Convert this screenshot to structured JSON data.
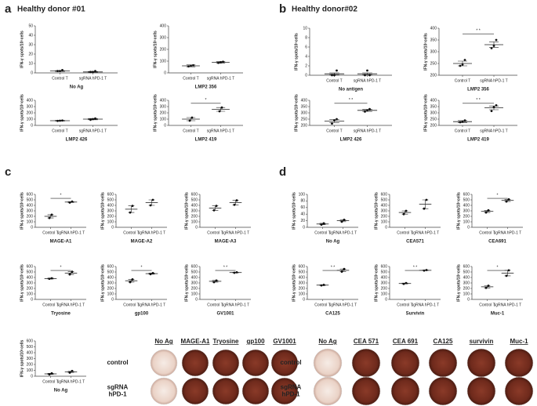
{
  "panels": [
    {
      "letter": "a",
      "title": "Healthy donor #01"
    },
    {
      "letter": "b",
      "title": "Healthy donor#02"
    },
    {
      "letter": "c"
    },
    {
      "letter": "d"
    }
  ],
  "photos": [
    {
      "columns": [
        "No Ag",
        "MAGE-A1",
        "Tryosine",
        "gp100",
        "GV1001"
      ],
      "rows": [
        [
          "control"
        ],
        [
          "sgRNA",
          "hPD-1"
        ]
      ]
    },
    {
      "columns": [
        "No Ag",
        "CEA 571",
        "CEA 691",
        "CA125",
        "survivin",
        "Muc-1"
      ],
      "rows": [
        [
          "control"
        ],
        [
          "sgRNA",
          "hPD-1"
        ]
      ]
    }
  ],
  "chart_data": [
    {
      "type": "dot",
      "title": "No Ag",
      "ylabel": "IFN-γ spots/10⁵cells",
      "categories": [
        "Control T",
        "sgRNA hPD-1 T"
      ],
      "ylim": [
        0,
        50
      ],
      "yticks": [
        0,
        10,
        20,
        30,
        40,
        50
      ],
      "values": [
        2,
        1
      ],
      "errors": [
        0.5,
        0.5
      ],
      "points": [
        [
          2,
          2,
          3
        ],
        [
          1,
          1,
          2
        ]
      ]
    },
    {
      "type": "dot",
      "title": "LMP2 356",
      "ylabel": "IFN-γ spots/10⁵cells",
      "categories": [
        "Control T",
        "sgRNA hPD-1 T"
      ],
      "ylim": [
        0,
        400
      ],
      "yticks": [
        0,
        100,
        200,
        300,
        400
      ],
      "values": [
        60,
        90
      ],
      "errors": [
        8,
        8
      ],
      "points": [
        [
          55,
          60,
          65
        ],
        [
          85,
          90,
          95
        ]
      ]
    },
    {
      "type": "dot",
      "title": "LMP2 426",
      "ylabel": "IFN-γ spots/10⁵cells",
      "categories": [
        "Control T",
        "sgRNA hPD-1 T"
      ],
      "ylim": [
        0,
        400
      ],
      "yticks": [
        0,
        100,
        200,
        300,
        400
      ],
      "values": [
        75,
        100
      ],
      "errors": [
        5,
        10
      ],
      "points": [
        [
          72,
          75,
          78
        ],
        [
          90,
          100,
          110
        ]
      ]
    },
    {
      "type": "dot",
      "title": "LMP2 419",
      "ylabel": "IFN-γ spots/10⁵cells",
      "categories": [
        "Control T",
        "sgRNA hPD-1 T"
      ],
      "ylim": [
        0,
        400
      ],
      "yticks": [
        0,
        100,
        200,
        300,
        400
      ],
      "values": [
        100,
        255
      ],
      "errors": [
        25,
        30
      ],
      "points": [
        [
          75,
          125
        ],
        [
          225,
          285
        ]
      ],
      "significance": "*"
    },
    {
      "type": "dot",
      "title": "No antigen",
      "ylabel": "IFN-γ spots/10⁵cells",
      "categories": [
        "Control T",
        "sgRNA hPD-1 T"
      ],
      "ylim": [
        0,
        10
      ],
      "yticks": [
        0,
        2,
        4,
        6,
        8,
        10
      ],
      "values": [
        0.3,
        0.3
      ],
      "errors": [
        0.2,
        0.2
      ],
      "points": [
        [
          0,
          0,
          1
        ],
        [
          0,
          1,
          0
        ]
      ]
    },
    {
      "type": "dot",
      "title": "LMP2 356",
      "ylabel": "IFN-γ spots/10⁵cells",
      "categories": [
        "Control T",
        "sgRNA hPD-1 T"
      ],
      "ylim": [
        200,
        400
      ],
      "yticks": [
        200,
        250,
        300,
        350,
        400
      ],
      "values": [
        250,
        330
      ],
      "errors": [
        10,
        12
      ],
      "points": [
        [
          240,
          245,
          265
        ],
        [
          315,
          325,
          350
        ]
      ],
      "significance": "* *"
    },
    {
      "type": "dot",
      "title": "LMP2 426",
      "ylabel": "IFN-γ spots/10⁵cells",
      "categories": [
        "Control T",
        "sgRNA hPD-1 T"
      ],
      "ylim": [
        200,
        400
      ],
      "yticks": [
        200,
        250,
        300,
        350,
        400
      ],
      "values": [
        235,
        320
      ],
      "errors": [
        12,
        8
      ],
      "points": [
        [
          215,
          240,
          250
        ],
        [
          310,
          320,
          330
        ]
      ],
      "significance": "* *"
    },
    {
      "type": "dot",
      "title": "LMP2 419",
      "ylabel": "IFN-γ spots/10⁵cells",
      "categories": [
        "Control T",
        "sgRNA hPD-1 T"
      ],
      "ylim": [
        200,
        400
      ],
      "yticks": [
        200,
        250,
        300,
        350,
        400
      ],
      "values": [
        230,
        340
      ],
      "errors": [
        8,
        15
      ],
      "points": [
        [
          225,
          230,
          240
        ],
        [
          315,
          345,
          360
        ]
      ],
      "significance": "* *"
    },
    {
      "type": "dot",
      "title": "MAGE-A1",
      "ylabel": "IFN-γ spots/10⁵cells",
      "categories": [
        "Control T",
        "sgRNA hPD-1 T"
      ],
      "ylim": [
        0,
        600
      ],
      "yticks": [
        0,
        100,
        200,
        300,
        400,
        500,
        600
      ],
      "values": [
        200,
        460
      ],
      "errors": [
        30,
        8
      ],
      "points": [
        [
          170,
          230
        ],
        [
          450,
          470
        ]
      ],
      "significance": "*"
    },
    {
      "type": "dot",
      "title": "MAGE-A2",
      "ylabel": "IFN-γ spots/10⁵cells",
      "categories": [
        "Control T",
        "sgRNA hPD-1 T"
      ],
      "ylim": [
        0,
        600
      ],
      "yticks": [
        0,
        100,
        200,
        300,
        400,
        500,
        600
      ],
      "values": [
        330,
        450
      ],
      "errors": [
        60,
        50
      ],
      "points": [
        [
          270,
          390
        ],
        [
          400,
          500
        ]
      ]
    },
    {
      "type": "dot",
      "title": "MAGE-A3",
      "ylabel": "IFN-γ spots/10⁵cells",
      "categories": [
        "Control T",
        "sgRNA hPD-1 T"
      ],
      "ylim": [
        0,
        600
      ],
      "yticks": [
        0,
        100,
        200,
        300,
        400,
        500,
        600
      ],
      "values": [
        350,
        450
      ],
      "errors": [
        40,
        40
      ],
      "points": [
        [
          310,
          390
        ],
        [
          410,
          490
        ]
      ]
    },
    {
      "type": "dot",
      "title": "Tryosine",
      "ylabel": "IFN-γ spots/10⁵cells",
      "categories": [
        "Control T",
        "sgRNA hPD-1 T"
      ],
      "ylim": [
        0,
        600
      ],
      "yticks": [
        0,
        100,
        200,
        300,
        400,
        500,
        600
      ],
      "values": [
        380,
        480
      ],
      "errors": [
        8,
        25
      ],
      "points": [
        [
          375,
          385
        ],
        [
          455,
          505
        ]
      ],
      "significance": "*"
    },
    {
      "type": "dot",
      "title": "gp100",
      "ylabel": "IFN-γ spots/10⁵cells",
      "categories": [
        "Control T",
        "sgRNA hPD-1 T"
      ],
      "ylim": [
        0,
        600
      ],
      "yticks": [
        0,
        100,
        200,
        300,
        400,
        500,
        600
      ],
      "values": [
        340,
        470
      ],
      "errors": [
        25,
        10
      ],
      "points": [
        [
          315,
          365
        ],
        [
          460,
          480
        ]
      ],
      "significance": "*"
    },
    {
      "type": "dot",
      "title": "GV1001",
      "ylabel": "IFN-γ spots/10⁵cells",
      "categories": [
        "Control T",
        "sgRNA hPD-1 T"
      ],
      "ylim": [
        0,
        600
      ],
      "yticks": [
        0,
        100,
        200,
        300,
        400,
        500,
        600
      ],
      "values": [
        330,
        490
      ],
      "errors": [
        15,
        5
      ],
      "points": [
        [
          315,
          345
        ],
        [
          485,
          495
        ]
      ],
      "significance": "* *"
    },
    {
      "type": "dot",
      "title": "No Ag",
      "ylabel": "IFN-γ spots/10⁵cells",
      "categories": [
        "Control T",
        "sgRNA hPD-1 T"
      ],
      "ylim": [
        0,
        600
      ],
      "yticks": [
        0,
        100,
        200,
        300,
        400,
        500,
        600
      ],
      "values": [
        40,
        75
      ],
      "errors": [
        10,
        15
      ],
      "points": [
        [
          30,
          50
        ],
        [
          60,
          90
        ]
      ]
    },
    {
      "type": "dot",
      "title": "No Ag",
      "ylabel": "IFN-γ spots/10⁵cells",
      "categories": [
        "Control T",
        "sgRNA hPD-1 T"
      ],
      "ylim": [
        0,
        100
      ],
      "yticks": [
        0,
        20,
        40,
        60,
        80,
        100
      ],
      "values": [
        10,
        20
      ],
      "errors": [
        2,
        3
      ],
      "points": [
        [
          8,
          12
        ],
        [
          17,
          23
        ]
      ]
    },
    {
      "type": "dot",
      "title": "CEA571",
      "ylabel": "IFN-γ spots/10⁵cells",
      "categories": [
        "Control T",
        "sgRNA hPD-1 T"
      ],
      "ylim": [
        0,
        600
      ],
      "yticks": [
        0,
        100,
        200,
        300,
        400,
        500,
        600
      ],
      "values": [
        270,
        420
      ],
      "errors": [
        30,
        80
      ],
      "points": [
        [
          240,
          300
        ],
        [
          340,
          500
        ]
      ]
    },
    {
      "type": "dot",
      "title": "CEA691",
      "ylabel": "IFN-γ spots/10⁵cells",
      "categories": [
        "Control T",
        "sgRNA hPD-1 T"
      ],
      "ylim": [
        0,
        600
      ],
      "yticks": [
        0,
        100,
        200,
        300,
        400,
        500,
        600
      ],
      "values": [
        290,
        490
      ],
      "errors": [
        20,
        20
      ],
      "points": [
        [
          270,
          310
        ],
        [
          470,
          510
        ]
      ],
      "significance": "*"
    },
    {
      "type": "dot",
      "title": "CA125",
      "ylabel": "IFN-γ spots/10⁵cells",
      "categories": [
        "Control T",
        "sgRNA hPD-1 T"
      ],
      "ylim": [
        0,
        600
      ],
      "yticks": [
        0,
        100,
        200,
        300,
        400,
        500,
        600
      ],
      "values": [
        260,
        530
      ],
      "errors": [
        5,
        25
      ],
      "points": [
        [
          255,
          265
        ],
        [
          505,
          555
        ]
      ],
      "significance": "* *"
    },
    {
      "type": "dot",
      "title": "Survivin",
      "ylabel": "IFN-γ spots/10⁵cells",
      "categories": [
        "Control T",
        "sgRNA hPD-1 T"
      ],
      "ylim": [
        0,
        600
      ],
      "yticks": [
        0,
        100,
        200,
        300,
        400,
        500,
        600
      ],
      "values": [
        290,
        530
      ],
      "errors": [
        8,
        5
      ],
      "points": [
        [
          282,
          298
        ],
        [
          525,
          535
        ]
      ],
      "significance": "* *"
    },
    {
      "type": "dot",
      "title": "Muc-1",
      "ylabel": "IFN-γ spots/10⁵cells",
      "categories": [
        "Control T",
        "sgRNA hPD-1 T"
      ],
      "ylim": [
        0,
        600
      ],
      "yticks": [
        0,
        100,
        200,
        300,
        400,
        500,
        600
      ],
      "values": [
        230,
        480
      ],
      "errors": [
        20,
        50
      ],
      "points": [
        [
          210,
          250
        ],
        [
          430,
          530
        ]
      ],
      "significance": "*"
    }
  ]
}
